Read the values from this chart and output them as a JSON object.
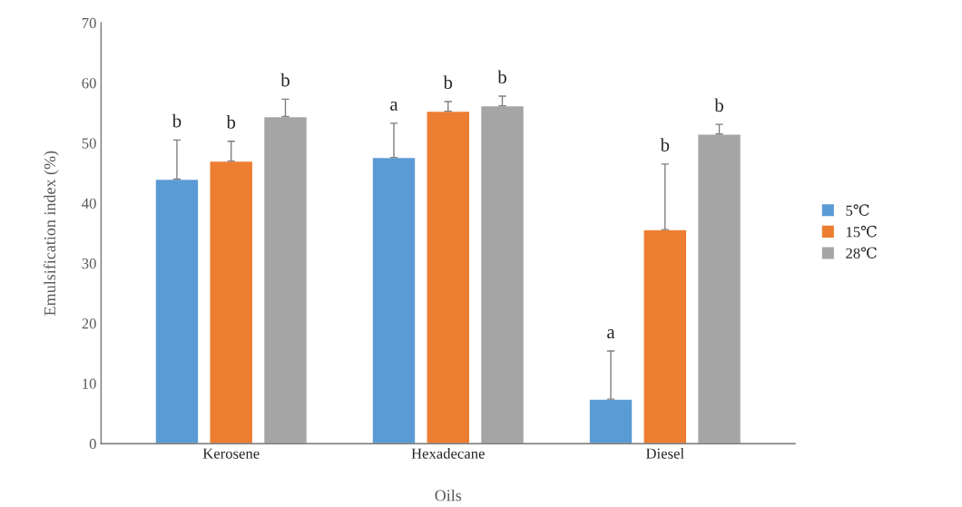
{
  "chart_data": {
    "type": "bar",
    "xlabel": "Oils",
    "ylabel": "Emulsification index (%)",
    "categories": [
      "Kerosene",
      "Hexadecane",
      "Diesel"
    ],
    "series": [
      {
        "name": "5℃",
        "color": "#5b9bd5",
        "values": [
          44,
          47.6,
          7.4
        ],
        "errors": [
          [
            44,
            50.5
          ],
          [
            47.6,
            53.3
          ],
          [
            7.4,
            15.4
          ]
        ]
      },
      {
        "name": "15℃",
        "color": "#ed7d31",
        "values": [
          47,
          55.3,
          35.6
        ],
        "errors": [
          [
            47,
            50.3
          ],
          [
            55.3,
            56.9
          ],
          [
            35.6,
            46.5
          ]
        ]
      },
      {
        "name": "28℃",
        "color": "#a5a5a5",
        "values": [
          54.4,
          56.2,
          51.5
        ],
        "errors": [
          [
            54.4,
            57.3
          ],
          [
            56.2,
            57.8
          ],
          [
            51.5,
            53.1
          ]
        ]
      }
    ],
    "ylim": [
      0,
      70
    ],
    "yticks": [
      0,
      10,
      20,
      30,
      40,
      50,
      60,
      70
    ],
    "grid": false,
    "legend": "right",
    "annotations": [
      "b",
      "b",
      "b",
      "a",
      "b",
      "b",
      "a",
      "b",
      "b"
    ]
  }
}
